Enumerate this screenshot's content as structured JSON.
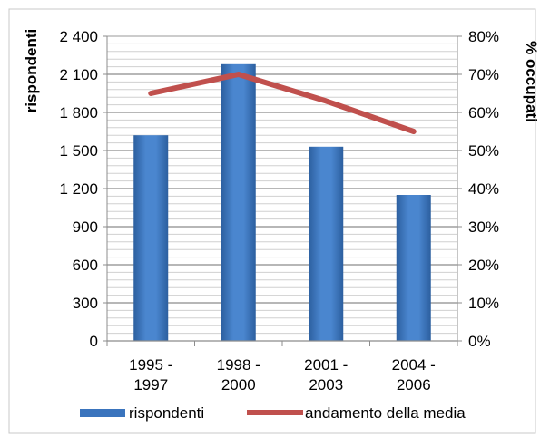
{
  "chart_data": {
    "type": "bar",
    "categories": [
      [
        "1995 -",
        "1997"
      ],
      [
        "1998 -",
        "2000"
      ],
      [
        "2001 -",
        "2003"
      ],
      [
        "2004 -",
        "2006"
      ]
    ],
    "series": [
      {
        "name": "rispondenti",
        "type": "bar",
        "axis": "left",
        "values": [
          1620,
          2180,
          1530,
          1150
        ],
        "color": "#3a74bd"
      },
      {
        "name": "andamento della media",
        "type": "line",
        "axis": "right",
        "values": [
          65,
          70,
          63,
          55
        ],
        "color": "#c0504d"
      }
    ],
    "ylabel": "rispondenti",
    "y2label": "% occupati",
    "ylim": [
      0,
      2400
    ],
    "yticks": [
      "0",
      "300",
      "600",
      "900",
      "1 200",
      "1 500",
      "1 800",
      "2 100",
      "2 400"
    ],
    "y2lim": [
      0,
      80
    ],
    "y2ticks": [
      "0%",
      "10%",
      "20%",
      "30%",
      "40%",
      "50%",
      "60%",
      "70%",
      "80%"
    ],
    "grid": true,
    "legend_position": "bottom"
  }
}
